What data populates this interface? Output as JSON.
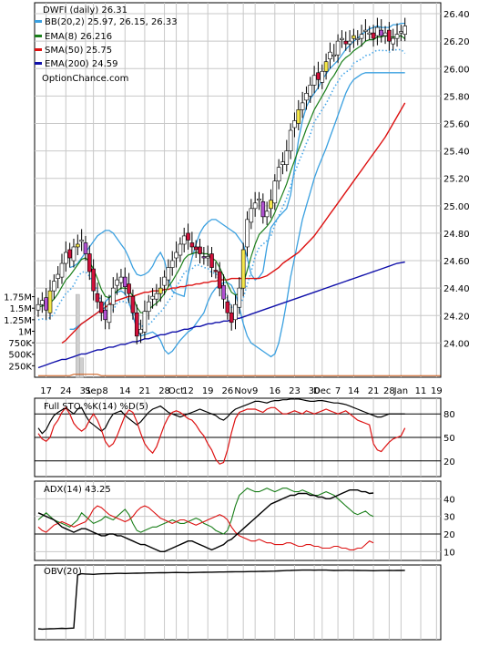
{
  "chart_data": {
    "type": "candlestick",
    "colors": {
      "bb": "#3aa0e0",
      "ema8": "#1a7f1a",
      "sma50": "#dd1111",
      "ema200": "#1010aa",
      "psar": "#4aa8e8",
      "up_body": "#f5e74a",
      "down_body": "#d0103a",
      "wick": "#000000",
      "volume": "#cfcfcf",
      "volume_line": "#cc5511",
      "sto_k": "#000000",
      "sto_d": "#dd1111",
      "adx": "#000000",
      "plus_di": "#1a7f1a",
      "minus_di": "#dd1111",
      "obv": "#000000",
      "neutral_body": "#ffffff",
      "purple_body": "#b050d0",
      "pink_band": "#f0a0f0"
    },
    "price": {
      "title": "DWFI (daily) 26.31",
      "legend": [
        {
          "label": "BB(20,2) 25.97, 26.15, 26.33",
          "color_key": "bb"
        },
        {
          "label": "EMA(8) 26.216",
          "color_key": "ema8"
        },
        {
          "label": "SMA(50) 25.75",
          "color_key": "sma50"
        },
        {
          "label": "EMA(200) 24.59",
          "color_key": "ema200"
        }
      ],
      "watermark": "OptionChance.com",
      "yticks": [
        "26.40",
        "26.20",
        "26.00",
        "25.80",
        "25.60",
        "25.40",
        "25.20",
        "25.00",
        "24.80",
        "24.60",
        "24.40",
        "24.20",
        "24.00"
      ],
      "ylim": [
        23.75,
        26.48
      ],
      "close": [
        24.28,
        24.31,
        24.24,
        24.38,
        24.45,
        24.5,
        24.58,
        24.66,
        24.62,
        24.7,
        24.72,
        24.75,
        24.65,
        24.52,
        24.38,
        24.3,
        24.22,
        24.17,
        24.28,
        24.4,
        24.46,
        24.48,
        24.41,
        24.36,
        24.22,
        24.05,
        24.1,
        24.23,
        24.3,
        24.34,
        24.36,
        24.4,
        24.48,
        24.55,
        24.6,
        24.66,
        24.72,
        24.78,
        24.75,
        24.7,
        24.68,
        24.65,
        24.62,
        24.63,
        24.55,
        24.52,
        24.4,
        24.32,
        24.22,
        24.15,
        24.28,
        24.4,
        24.68,
        24.9,
        24.98,
        25.02,
        25.05,
        24.92,
        24.96,
        25.04,
        25.18,
        25.28,
        25.32,
        25.4,
        25.55,
        25.62,
        25.7,
        25.75,
        25.82,
        25.88,
        25.95,
        25.92,
        25.98,
        26.05,
        26.12,
        26.1,
        26.2,
        26.22,
        26.18,
        26.2,
        26.24,
        26.22,
        26.25,
        26.28,
        26.26,
        26.22,
        26.3,
        26.24,
        26.26,
        26.2,
        26.22,
        26.25,
        26.27,
        26.31
      ],
      "bb_upper": [
        24.55,
        24.56,
        24.58,
        24.62,
        24.66,
        24.7,
        24.74,
        24.78,
        24.8,
        24.82,
        24.82,
        24.8,
        24.76,
        24.72,
        24.68,
        24.62,
        24.55,
        24.5,
        24.49,
        24.5,
        24.52,
        24.56,
        24.62,
        24.66,
        24.6,
        24.48,
        24.38,
        24.36,
        24.35,
        24.34,
        24.5,
        24.62,
        24.72,
        24.8,
        24.85,
        24.88,
        24.9,
        24.9,
        24.88,
        24.86,
        24.84,
        24.82,
        24.8,
        24.76,
        24.72,
        24.62,
        24.5,
        24.46,
        24.48,
        24.52,
        24.7,
        24.84,
        24.88,
        24.92,
        24.95,
        24.98,
        25.08,
        25.28,
        25.48,
        25.62,
        25.72,
        25.78,
        25.82,
        25.86,
        25.92,
        25.96,
        26.0,
        26.03,
        26.06,
        26.1,
        26.14,
        26.17,
        26.2,
        26.22,
        26.25,
        26.27,
        26.29,
        26.3,
        26.31,
        26.3,
        26.3,
        26.3,
        26.32,
        26.32,
        26.33,
        26.33
      ],
      "bb_lower": [
        24.1,
        24.1,
        24.12,
        24.14,
        24.16,
        24.18,
        24.2,
        24.22,
        24.25,
        24.3,
        24.33,
        24.36,
        24.37,
        24.38,
        24.36,
        24.3,
        24.2,
        24.1,
        24.05,
        24.06,
        24.07,
        24.08,
        24.06,
        24.02,
        23.95,
        23.92,
        23.94,
        23.98,
        24.02,
        24.05,
        24.08,
        24.1,
        24.14,
        24.18,
        24.22,
        24.3,
        24.36,
        24.4,
        24.42,
        24.44,
        24.44,
        24.42,
        24.36,
        24.26,
        24.14,
        24.05,
        24.0,
        23.98,
        23.96,
        23.94,
        23.92,
        23.9,
        23.92,
        24.0,
        24.14,
        24.3,
        24.48,
        24.62,
        24.76,
        24.9,
        25.0,
        25.1,
        25.2,
        25.28,
        25.35,
        25.42,
        25.5,
        25.58,
        25.66,
        25.74,
        25.82,
        25.88,
        25.92,
        25.94,
        25.96,
        25.97,
        25.97,
        25.97,
        25.97,
        25.97,
        25.97,
        25.97,
        25.97,
        25.97,
        25.97,
        25.97
      ],
      "bb_start_index": 8,
      "ema8": [
        24.26,
        24.27,
        24.27,
        24.29,
        24.32,
        24.36,
        24.41,
        24.46,
        24.49,
        24.53,
        24.57,
        24.61,
        24.62,
        24.59,
        24.54,
        24.47,
        24.39,
        24.34,
        24.33,
        24.35,
        24.38,
        24.4,
        24.4,
        24.39,
        24.34,
        24.26,
        24.22,
        24.22,
        24.24,
        24.27,
        24.29,
        24.32,
        24.36,
        24.41,
        24.45,
        24.5,
        24.55,
        24.61,
        24.64,
        24.65,
        24.66,
        24.66,
        24.65,
        24.65,
        24.62,
        24.6,
        24.55,
        24.49,
        24.43,
        24.37,
        24.35,
        24.36,
        24.43,
        24.53,
        24.63,
        24.72,
        24.79,
        24.82,
        24.85,
        24.89,
        24.95,
        25.02,
        25.09,
        25.16,
        25.25,
        25.33,
        25.41,
        25.48,
        25.56,
        25.63,
        25.7,
        25.75,
        25.8,
        25.85,
        25.91,
        25.95,
        26.0,
        26.05,
        26.08,
        26.1,
        26.13,
        26.15,
        26.17,
        26.2,
        26.21,
        26.21,
        26.23,
        26.23,
        26.24,
        26.23,
        26.23,
        26.23,
        26.24,
        26.216
      ],
      "sma50": [
        24.0,
        24.02,
        24.05,
        24.08,
        24.11,
        24.14,
        24.16,
        24.18,
        24.2,
        24.22,
        24.24,
        24.26,
        24.28,
        24.3,
        24.31,
        24.32,
        24.33,
        24.34,
        24.34,
        24.35,
        24.36,
        24.37,
        24.37,
        24.38,
        24.38,
        24.38,
        24.39,
        24.39,
        24.4,
        24.4,
        24.41,
        24.41,
        24.42,
        24.42,
        24.43,
        24.43,
        24.44,
        24.44,
        24.45,
        24.45,
        24.46,
        24.46,
        24.46,
        24.47,
        24.47,
        24.47,
        24.47,
        24.47,
        24.47,
        24.47,
        24.47,
        24.48,
        24.49,
        24.51,
        24.53,
        24.55,
        24.58,
        24.6,
        24.62,
        24.64,
        24.66,
        24.69,
        24.72,
        24.75,
        24.78,
        24.82,
        24.86,
        24.9,
        24.94,
        24.98,
        25.02,
        25.06,
        25.1,
        25.14,
        25.18,
        25.22,
        25.26,
        25.3,
        25.34,
        25.38,
        25.42,
        25.46,
        25.5,
        25.55,
        25.6,
        25.65,
        25.7,
        25.75
      ],
      "sma50_start_index": 6,
      "ema200": [
        23.82,
        23.83,
        23.84,
        23.85,
        23.86,
        23.87,
        23.88,
        23.88,
        23.89,
        23.9,
        23.91,
        23.92,
        23.92,
        23.93,
        23.94,
        23.95,
        23.95,
        23.96,
        23.97,
        23.97,
        23.98,
        23.99,
        23.99,
        24.0,
        24.01,
        24.01,
        24.02,
        24.03,
        24.03,
        24.04,
        24.05,
        24.06,
        24.06,
        24.07,
        24.08,
        24.08,
        24.09,
        24.1,
        24.1,
        24.11,
        24.12,
        24.12,
        24.13,
        24.14,
        24.14,
        24.15,
        24.15,
        24.16,
        24.16,
        24.17,
        24.18,
        24.18,
        24.19,
        24.2,
        24.21,
        24.22,
        24.23,
        24.24,
        24.25,
        24.26,
        24.27,
        24.28,
        24.29,
        24.3,
        24.31,
        24.32,
        24.33,
        24.34,
        24.35,
        24.36,
        24.37,
        24.38,
        24.39,
        24.4,
        24.41,
        24.42,
        24.43,
        24.44,
        24.45,
        24.46,
        24.47,
        24.48,
        24.49,
        24.5,
        24.51,
        24.52,
        24.53,
        24.54,
        24.55,
        24.56,
        24.57,
        24.58,
        24.585,
        24.59
      ]
    },
    "volume": {
      "yticks": [
        "1.75M",
        "1.5M",
        "1.25M",
        "1M",
        "750K",
        "500K",
        "250K"
      ],
      "ylim": [
        0,
        1900000
      ],
      "spikes": [
        {
          "index": 10,
          "value": 1800000
        },
        {
          "index": 11,
          "value": 420000
        }
      ],
      "baseline": 35000
    },
    "stochastic": {
      "title": "Full STO %K(14) %D(5)",
      "yticks": [
        "80",
        "50",
        "20"
      ],
      "ylim": [
        0,
        100
      ],
      "k": [
        62,
        55,
        60,
        70,
        78,
        82,
        85,
        88,
        84,
        80,
        86,
        88,
        78,
        70,
        66,
        62,
        58,
        62,
        72,
        80,
        82,
        84,
        78,
        74,
        70,
        66,
        70,
        76,
        82,
        86,
        88,
        90,
        86,
        82,
        80,
        78,
        76,
        78,
        80,
        82,
        84,
        86,
        84,
        82,
        80,
        78,
        74,
        72,
        76,
        82,
        86,
        88,
        90,
        92,
        94,
        96,
        96,
        95,
        94,
        96,
        97,
        97,
        98,
        98,
        99,
        99,
        99,
        98,
        97,
        96,
        96,
        97,
        97,
        96,
        95,
        94,
        94,
        93,
        92,
        90,
        88,
        86,
        84,
        82,
        80,
        78,
        76,
        76,
        78,
        80,
        80,
        80,
        80,
        80
      ],
      "d": [
        55,
        48,
        45,
        50,
        65,
        72,
        82,
        88,
        80,
        68,
        62,
        58,
        62,
        72,
        80,
        72,
        60,
        45,
        38,
        42,
        52,
        65,
        78,
        85,
        82,
        70,
        55,
        42,
        35,
        30,
        38,
        52,
        66,
        76,
        82,
        84,
        82,
        78,
        74,
        72,
        66,
        58,
        52,
        42,
        34,
        22,
        16,
        18,
        34,
        56,
        74,
        82,
        84,
        86,
        86,
        86,
        84,
        82,
        86,
        88,
        88,
        84,
        80,
        80,
        82,
        84,
        82,
        80,
        84,
        82,
        80,
        82,
        84,
        86,
        84,
        82,
        80,
        82,
        84,
        80,
        76,
        72,
        70,
        68,
        66,
        42,
        34,
        32,
        38,
        44,
        48,
        50,
        52,
        62
      ]
    },
    "adx": {
      "title": "ADX(14) 43.25",
      "yticks": [
        "40",
        "30",
        "20",
        "10"
      ],
      "ylim": [
        5,
        50
      ],
      "adx": [
        32,
        31,
        30,
        29,
        28,
        26,
        24,
        23,
        22,
        21,
        22,
        23,
        23,
        22,
        21,
        20,
        19,
        19,
        20,
        20,
        19,
        19,
        18,
        17,
        16,
        15,
        14,
        14,
        13,
        12,
        11,
        10,
        10,
        11,
        12,
        13,
        14,
        15,
        16,
        16,
        15,
        14,
        13,
        12,
        11,
        12,
        13,
        14,
        16,
        17,
        19,
        21,
        23,
        25,
        27,
        29,
        31,
        33,
        35,
        37,
        38,
        39,
        40,
        41,
        42,
        42,
        43,
        43,
        43,
        42,
        42,
        41,
        41,
        40,
        40,
        41,
        42,
        43,
        44,
        45,
        45,
        45,
        44,
        44,
        43,
        43.25
      ],
      "plus_di": [
        28,
        30,
        32,
        30,
        28,
        27,
        26,
        25,
        24,
        26,
        28,
        32,
        30,
        28,
        26,
        27,
        28,
        30,
        29,
        28,
        30,
        32,
        34,
        31,
        26,
        22,
        21,
        22,
        23,
        24,
        24,
        25,
        26,
        27,
        28,
        27,
        26,
        26,
        27,
        28,
        29,
        28,
        26,
        25,
        24,
        22,
        21,
        20,
        22,
        28,
        36,
        42,
        44,
        46,
        45,
        44,
        44,
        45,
        46,
        45,
        44,
        45,
        46,
        46,
        45,
        44,
        44,
        45,
        44,
        43,
        42,
        42,
        43,
        44,
        43,
        42,
        40,
        38,
        36,
        34,
        32,
        31,
        32,
        33,
        31,
        30
      ],
      "minus_di": [
        24,
        22,
        21,
        23,
        25,
        26,
        27,
        26,
        25,
        24,
        25,
        26,
        27,
        30,
        34,
        36,
        35,
        33,
        31,
        30,
        29,
        28,
        27,
        28,
        30,
        33,
        35,
        36,
        35,
        33,
        31,
        29,
        28,
        27,
        26,
        27,
        28,
        28,
        27,
        26,
        25,
        26,
        27,
        28,
        29,
        30,
        31,
        30,
        28,
        24,
        21,
        19,
        18,
        17,
        16,
        16,
        17,
        16,
        15,
        15,
        14,
        14,
        14,
        15,
        15,
        14,
        13,
        13,
        14,
        14,
        13,
        13,
        12,
        12,
        12,
        13,
        13,
        12,
        12,
        11,
        11,
        12,
        12,
        14,
        16,
        15
      ]
    },
    "obv": {
      "title": "OBV(20)",
      "ylim": [
        -2000000,
        400000
      ],
      "values": [
        -1650000,
        -1660000,
        -1655000,
        -1650000,
        -1645000,
        -1640000,
        -1635000,
        -1640000,
        -1630000,
        -1625000,
        80000,
        120000,
        110000,
        105000,
        100000,
        110000,
        115000,
        120000,
        118000,
        125000,
        130000,
        132000,
        128000,
        130000,
        135000,
        138000,
        140000,
        142000,
        145000,
        146000,
        148000,
        150000,
        152000,
        155000,
        158000,
        160000,
        158000,
        156000,
        155000,
        158000,
        160000,
        162000,
        165000,
        168000,
        170000,
        172000,
        175000,
        176000,
        178000,
        180000,
        182000,
        183000,
        184000,
        186000,
        188000,
        190000,
        192000,
        195000,
        198000,
        200000,
        205000,
        210000,
        215000,
        220000,
        225000,
        230000,
        232000,
        235000,
        236000,
        235000,
        234000,
        235000,
        236000,
        235000,
        230000,
        225000,
        226000,
        228000,
        230000,
        228000,
        226000,
        224000,
        222000,
        220000,
        218000,
        216000,
        218000,
        220000,
        222000,
        224000,
        222000,
        224000,
        225000,
        226000
      ]
    },
    "x_labels": [
      "17",
      "24",
      "31",
      "Sep",
      "8",
      "14",
      "21",
      "28",
      "Oct",
      "12",
      "19",
      "26",
      "Nov",
      "9",
      "16",
      "23",
      "30",
      "Dec",
      "7",
      "14",
      "21",
      "28",
      "Jan",
      "11",
      "19"
    ],
    "x_label_index": [
      2,
      7,
      12,
      14,
      17,
      22,
      27,
      32,
      35,
      38,
      43,
      48,
      52,
      55,
      60,
      65,
      70,
      72,
      76,
      80,
      85,
      89,
      92,
      97,
      101
    ],
    "x_total": 103
  }
}
